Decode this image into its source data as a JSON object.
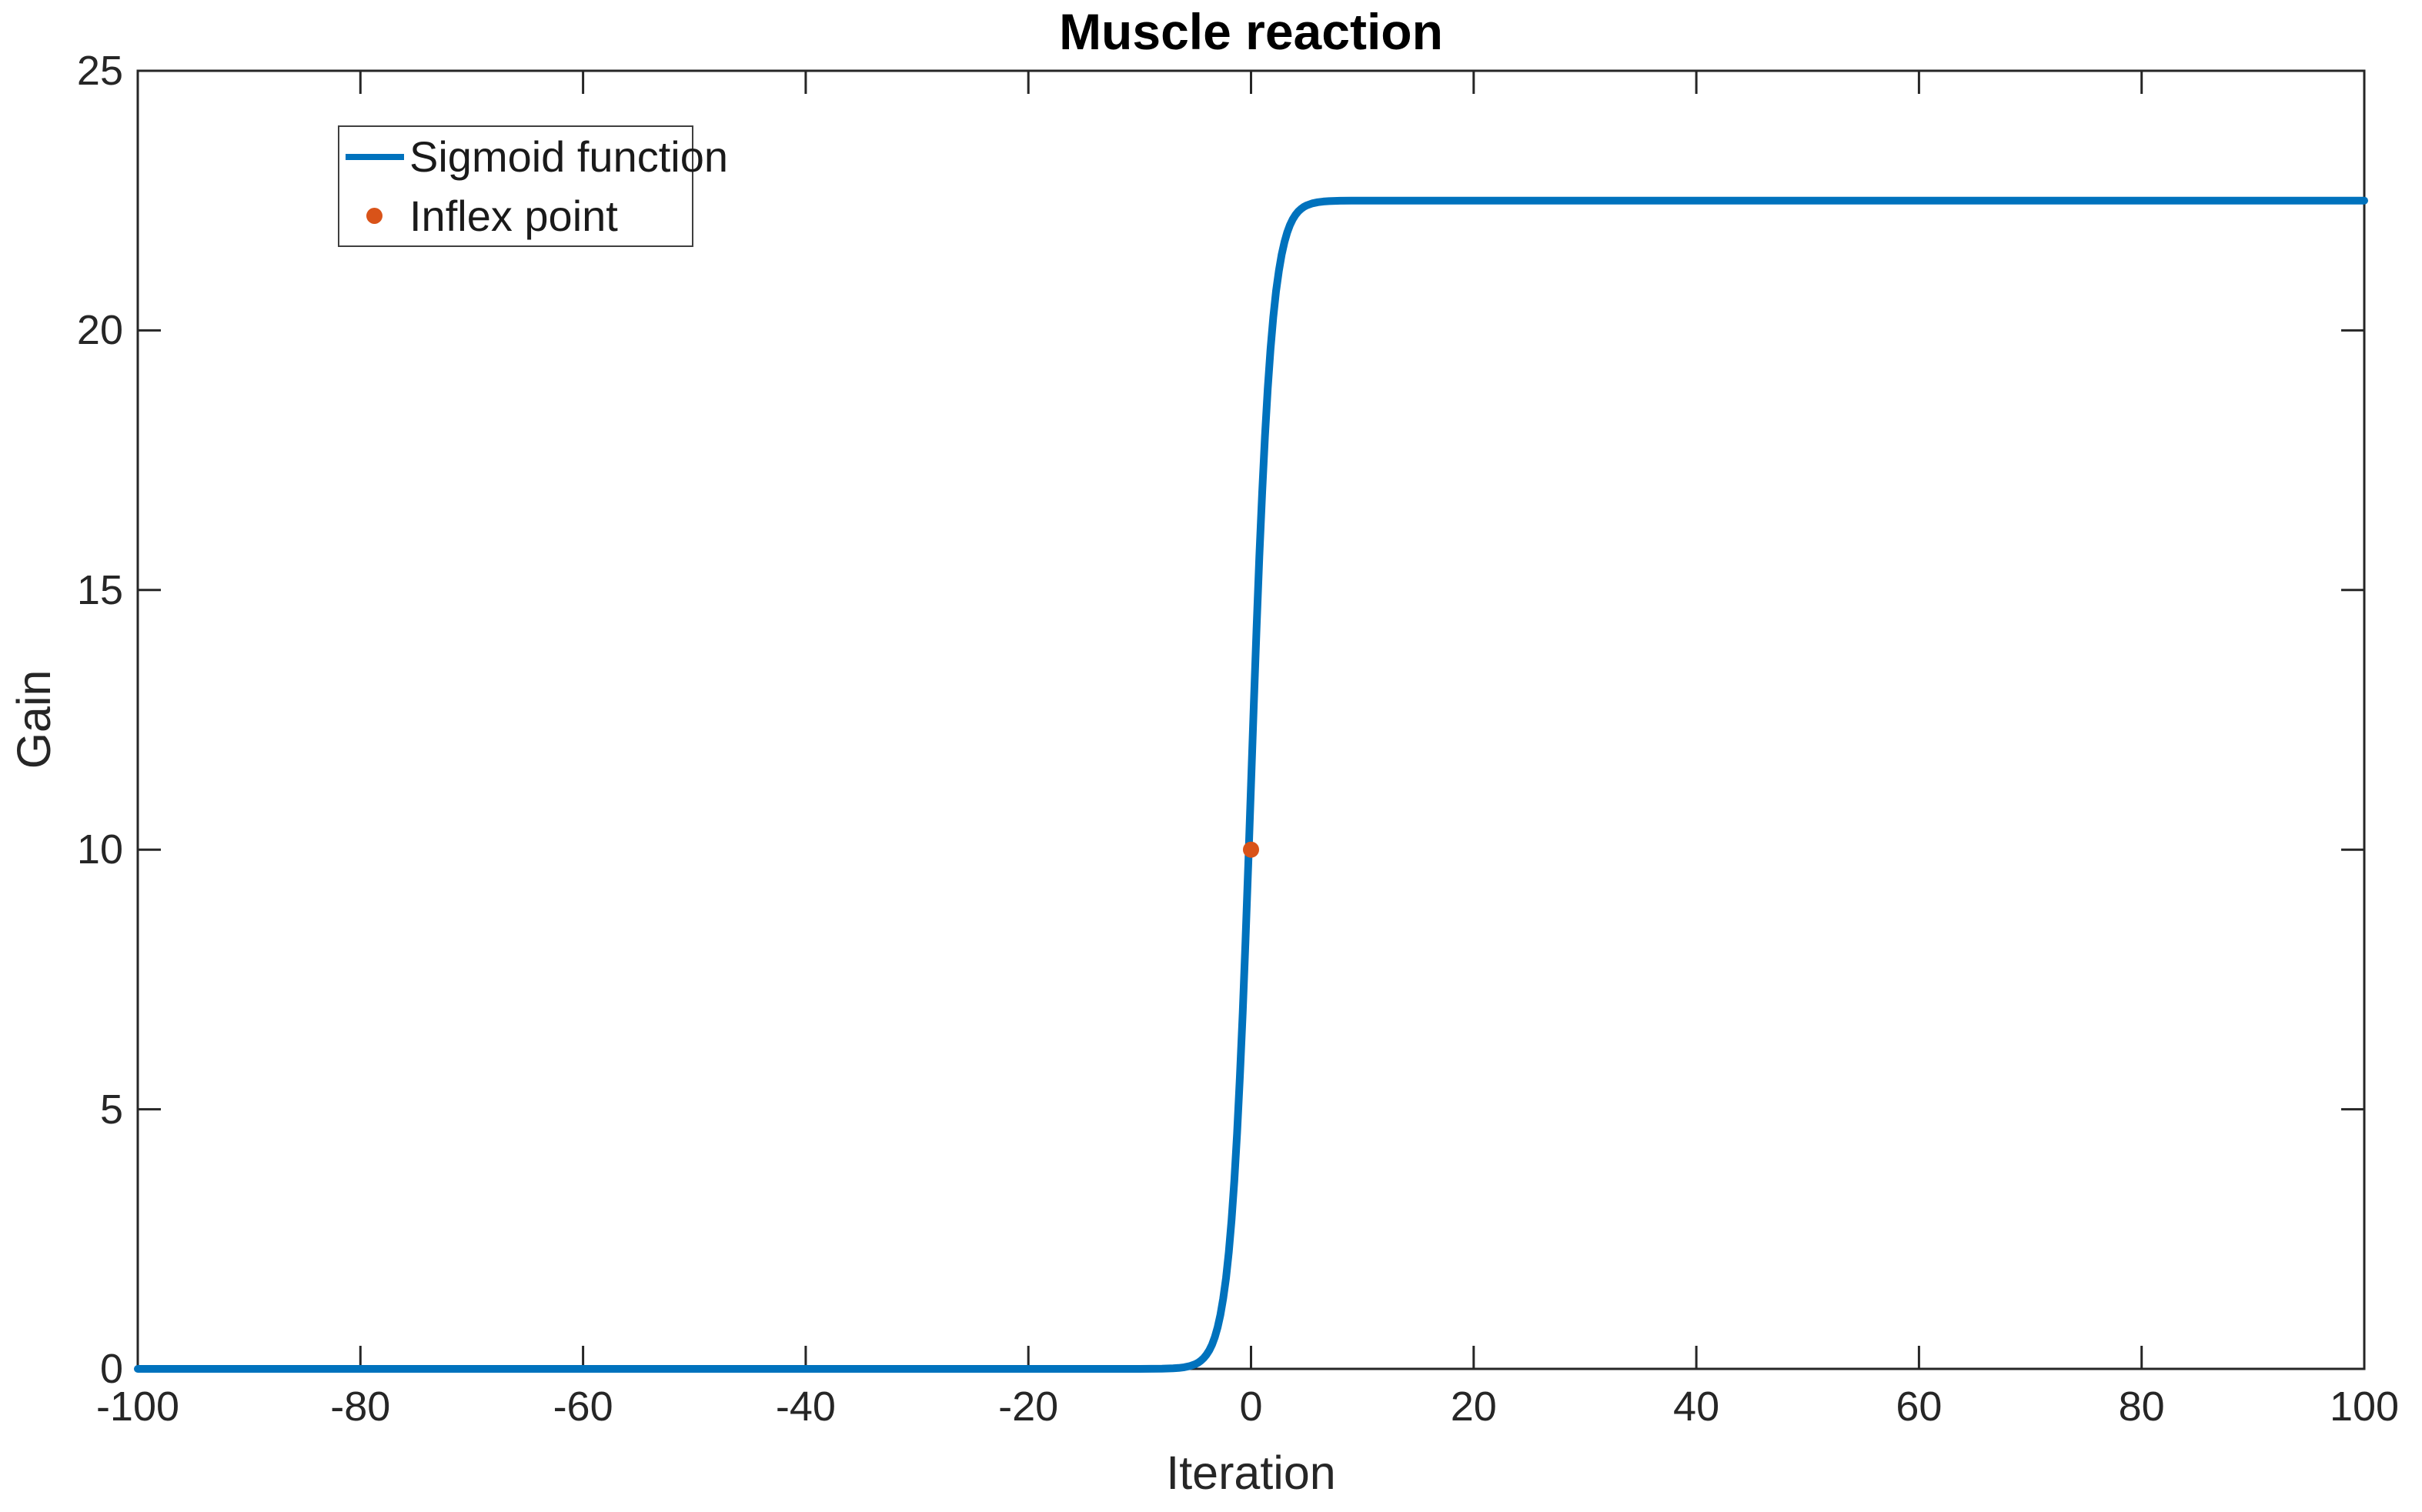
{
  "figure": {
    "title": "Muscle reaction",
    "background_color": "#ffffff"
  },
  "chart_data": {
    "type": "line",
    "title": "Muscle reaction",
    "xlabel": "Iteration",
    "ylabel": "Gain",
    "xlim": [
      -100,
      100
    ],
    "ylim": [
      0,
      25
    ],
    "x_ticks": [
      -100,
      -80,
      -60,
      -40,
      -20,
      0,
      20,
      40,
      60,
      80,
      100
    ],
    "x_tick_labels": [
      "-100",
      "-80",
      "-60",
      "-40",
      "-20",
      "0",
      "20",
      "40",
      "60",
      "80",
      "100"
    ],
    "y_ticks": [
      0,
      5,
      10,
      15,
      20,
      25
    ],
    "y_tick_labels": [
      "0",
      "5",
      "10",
      "15",
      "20",
      "25"
    ],
    "grid": false,
    "box": true,
    "tick_direction": "in",
    "colors": {
      "axis": "#262626",
      "title": "#000000",
      "tick_label": "#262626",
      "series_line": "#0072BD",
      "inflex_marker": "#D95319"
    },
    "legend": {
      "position": "top-left-inside",
      "entries": [
        {
          "label": "Sigmoid function",
          "type": "line",
          "color": "#0072BD"
        },
        {
          "label": "Inflex point",
          "type": "dot",
          "color": "#D95319"
        }
      ]
    },
    "series": [
      {
        "name": "Sigmoid function",
        "type": "line",
        "color": "#0072BD",
        "description": "Sigmoid rising from 0 to saturation 22.5 with steep transition around x=0; approx y = 22.5 / (1 + exp(-1.1x))",
        "points": [
          [
            -100,
            0
          ],
          [
            -80,
            0
          ],
          [
            -60,
            0
          ],
          [
            -40,
            0
          ],
          [
            -30,
            0
          ],
          [
            -20,
            0
          ],
          [
            -15,
            0
          ],
          [
            -12,
            0
          ],
          [
            -10,
            0
          ],
          [
            -9,
            0.001
          ],
          [
            -8,
            0.003
          ],
          [
            -7,
            0.01
          ],
          [
            -6.5,
            0.018
          ],
          [
            -6,
            0.031
          ],
          [
            -5.5,
            0.053
          ],
          [
            -5,
            0.092
          ],
          [
            -4.75,
            0.12
          ],
          [
            -4.5,
            0.158
          ],
          [
            -4.25,
            0.208
          ],
          [
            -4,
            0.273
          ],
          [
            -3.75,
            0.358
          ],
          [
            -3.5,
            0.469
          ],
          [
            -3.25,
            0.613
          ],
          [
            -3,
            0.8
          ],
          [
            -2.75,
            1.041
          ],
          [
            -2.5,
            1.352
          ],
          [
            -2.25,
            1.746
          ],
          [
            -2,
            2.245
          ],
          [
            -1.75,
            2.865
          ],
          [
            -1.5,
            3.624
          ],
          [
            -1.25,
            4.541
          ],
          [
            -1,
            5.619
          ],
          [
            -0.75,
            6.856
          ],
          [
            -0.5,
            8.233
          ],
          [
            -0.25,
            9.713
          ],
          [
            0,
            11.25
          ],
          [
            0.25,
            12.787
          ],
          [
            0.5,
            14.267
          ],
          [
            0.75,
            15.644
          ],
          [
            1,
            16.881
          ],
          [
            1.25,
            17.959
          ],
          [
            1.5,
            18.875
          ],
          [
            1.75,
            19.635
          ],
          [
            2,
            20.255
          ],
          [
            2.25,
            20.754
          ],
          [
            2.5,
            21.148
          ],
          [
            2.75,
            21.459
          ],
          [
            3,
            21.699
          ],
          [
            3.25,
            21.887
          ],
          [
            3.5,
            22.03
          ],
          [
            3.75,
            22.142
          ],
          [
            4,
            22.227
          ],
          [
            4.25,
            22.292
          ],
          [
            4.5,
            22.342
          ],
          [
            4.75,
            22.38
          ],
          [
            5,
            22.408
          ],
          [
            5.5,
            22.447
          ],
          [
            6,
            22.469
          ],
          [
            6.5,
            22.482
          ],
          [
            7,
            22.49
          ],
          [
            8,
            22.497
          ],
          [
            9,
            22.499
          ],
          [
            10,
            22.5
          ],
          [
            12,
            22.5
          ],
          [
            15,
            22.5
          ],
          [
            20,
            22.5
          ],
          [
            30,
            22.5
          ],
          [
            40,
            22.5
          ],
          [
            60,
            22.5
          ],
          [
            80,
            22.5
          ],
          [
            100,
            22.5
          ]
        ]
      },
      {
        "name": "Inflex point",
        "type": "scatter",
        "color": "#D95319",
        "points": [
          [
            0,
            10
          ]
        ]
      }
    ]
  }
}
